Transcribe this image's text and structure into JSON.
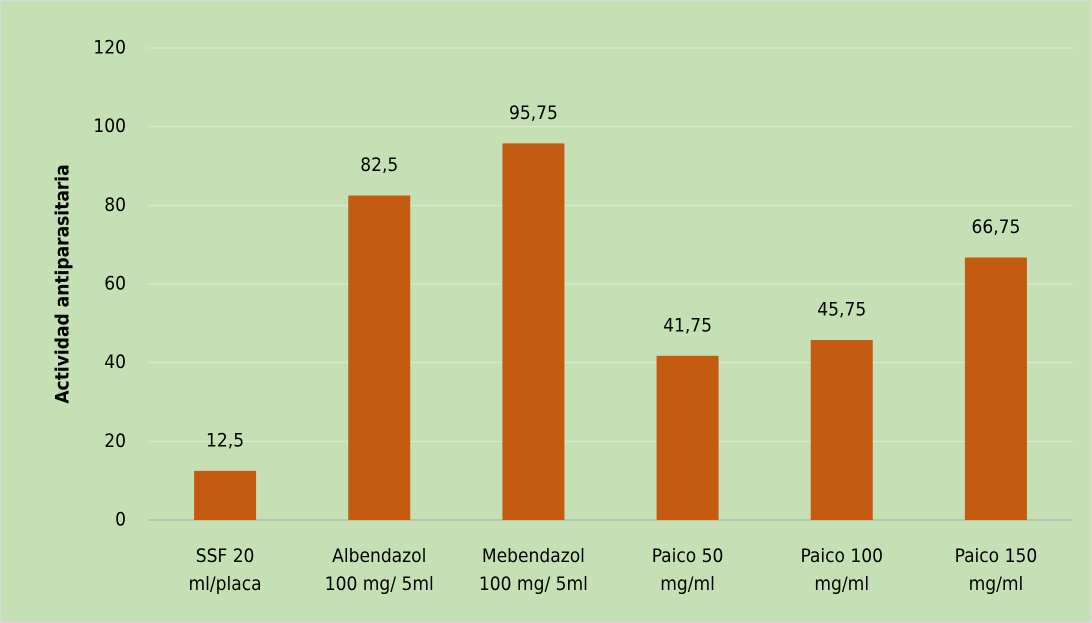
{
  "chart_data": {
    "type": "bar",
    "y_label": "Actividad antiparasitaria",
    "categories": [
      "SSF 20\nml/placa",
      "Albendazol\n100 mg/ 5ml",
      "Mebendazol\n100 mg/ 5ml",
      "Paico 50\nmg/ml",
      "Paico 100\nmg/ml",
      "Paico 150\nmg/ml"
    ],
    "values": [
      12.5,
      82.5,
      95.75,
      41.75,
      45.75,
      66.75
    ],
    "value_labels": [
      "12,5",
      "82,5",
      "95,75",
      "41,75",
      "45,75",
      "66,75"
    ],
    "color": "#c55a11",
    "ylim": [
      0,
      120
    ],
    "yticks": [
      0,
      20,
      40,
      60,
      80,
      100,
      120
    ],
    "grid": true
  }
}
